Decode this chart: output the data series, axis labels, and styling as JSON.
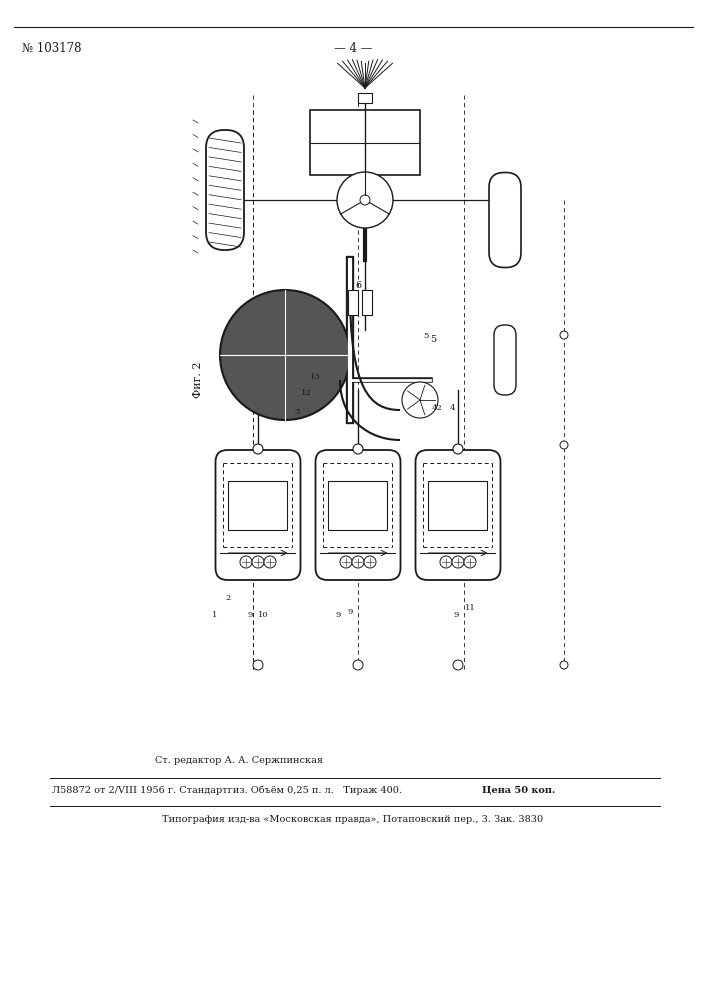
{
  "header_number": "№ 103178",
  "header_page": "— 4 —",
  "fig_label": "Фиг. 2",
  "footer_line1": "Ст. редактор А. А. Сержпинская",
  "footer_line2a": "Л58872 от 2/VIII 1956 г. Стандартгиз. Объём 0,25 п. л.   Тираж 400.   ",
  "footer_line2b": "Цена 50 коп.",
  "footer_line3": "Типография изд-ва «Московская правда», Потаповский пер., 3. Зак. 3830",
  "bg_color": "#ffffff",
  "line_color": "#1a1a1a"
}
